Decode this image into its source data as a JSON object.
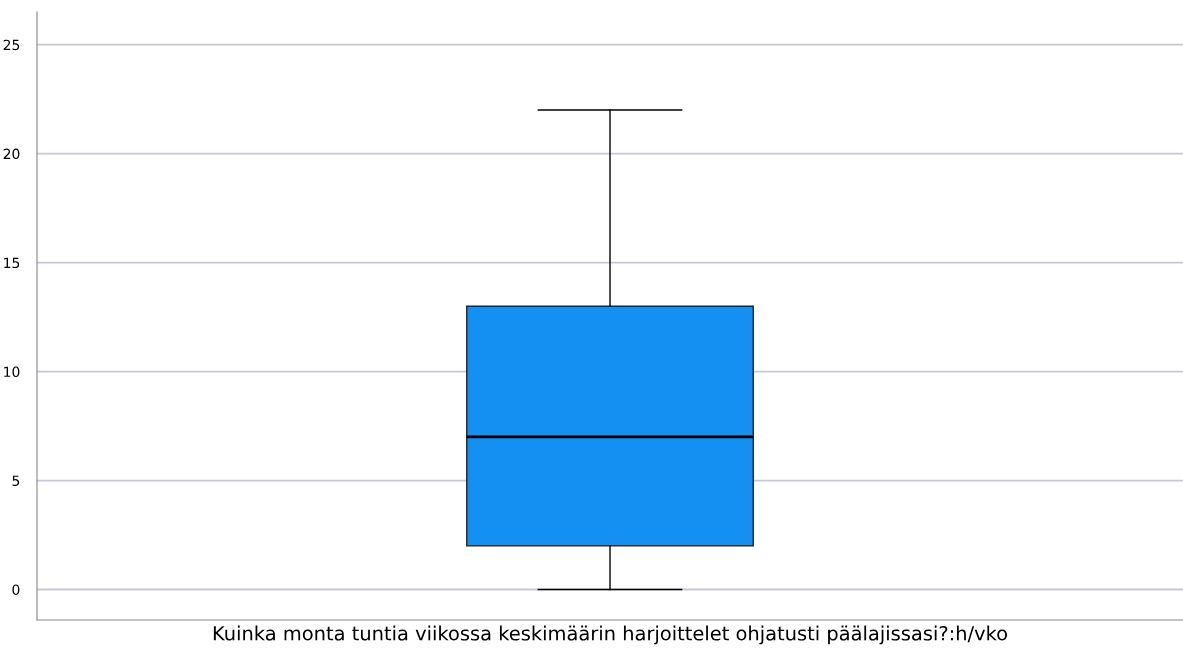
{
  "chart_data": {
    "type": "box",
    "categories": [
      "Kuinka monta tuntia viikossa keskimäärin harjoittelet ohjatusti päälajissasi?:h/vko"
    ],
    "boxes": [
      {
        "low": 0,
        "q1": 2,
        "median": 7,
        "q3": 13,
        "high": 22
      }
    ],
    "color": "#1490f2",
    "ylim": [
      -1.4,
      26.5
    ],
    "yticks": [
      0,
      5,
      10,
      15,
      20,
      25
    ],
    "grid": "y"
  }
}
